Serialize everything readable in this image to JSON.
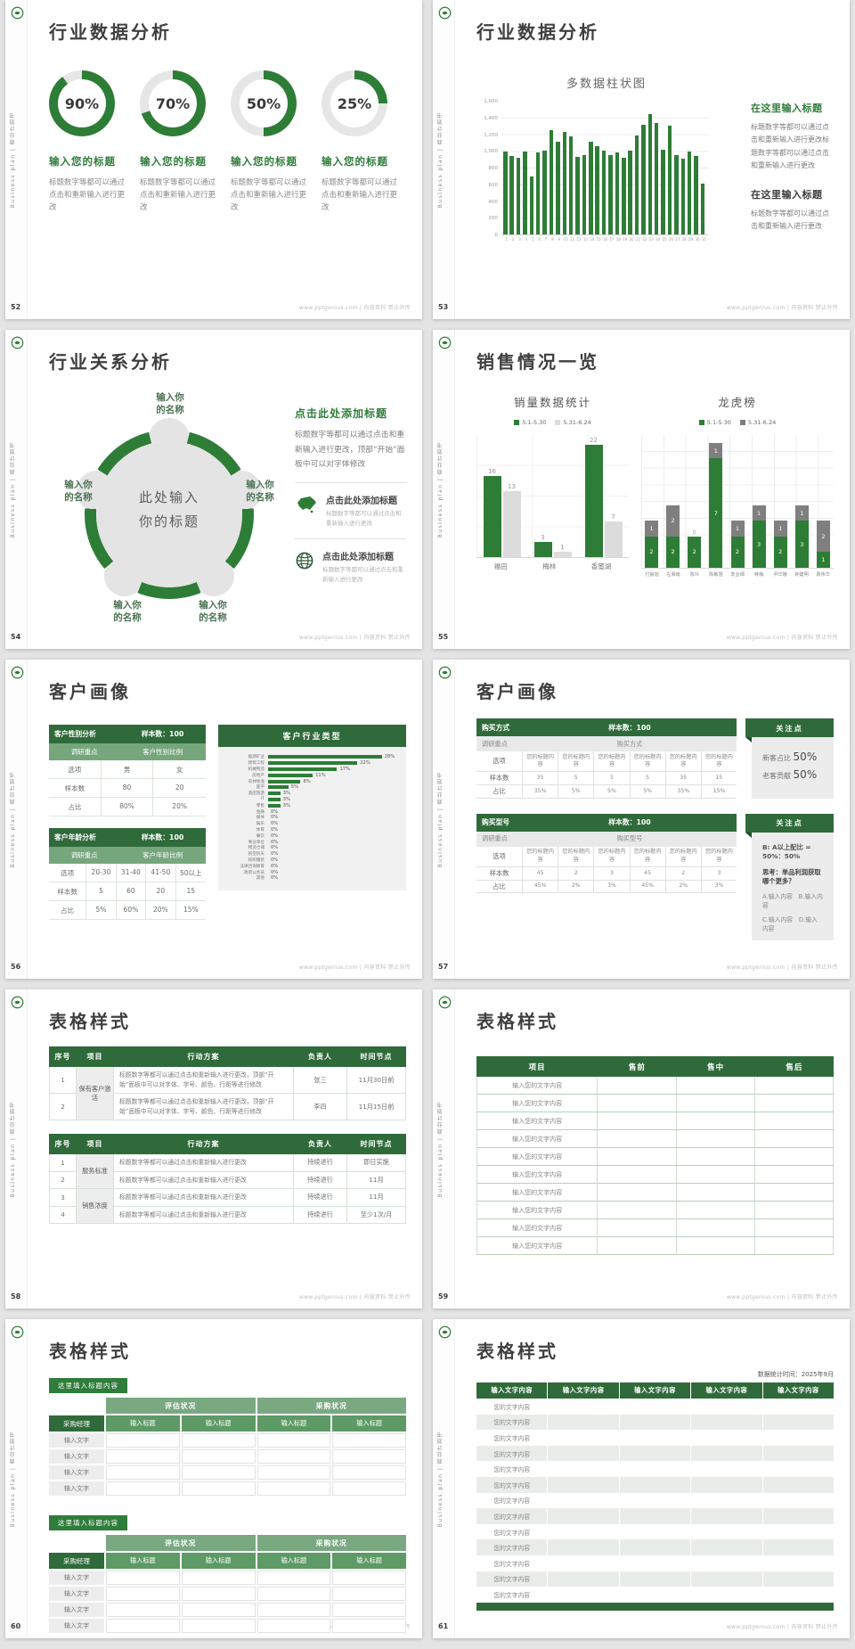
{
  "shared": {
    "sidebar_text": "Business plan | 商业计划书",
    "site_footer": "www.pptgenius.com | 内容资料 禁止外传",
    "accent_green": "#2e7d36",
    "table_header_green": "#2f6b3a"
  },
  "s52": {
    "page_no": "52",
    "title": "行业数据分析",
    "items": [
      {
        "pct": 90,
        "pct_label": "90%",
        "heading": "输入您的标题",
        "body": "标题数字等都可以通过点击和重新输入进行更改"
      },
      {
        "pct": 70,
        "pct_label": "70%",
        "heading": "输入您的标题",
        "body": "标题数字等都可以通过点击和重新输入进行更改"
      },
      {
        "pct": 50,
        "pct_label": "50%",
        "heading": "输入您的标题",
        "body": "标题数字等都可以通过点击和重新输入进行更改"
      },
      {
        "pct": 25,
        "pct_label": "25%",
        "heading": "输入您的标题",
        "body": "标题数字等都可以通过点击和重新输入进行更改"
      }
    ]
  },
  "s53": {
    "page_no": "53",
    "title": "行业数据分析",
    "chart_data": {
      "type": "bar",
      "title": "多数据柱状图",
      "ylim": [
        0,
        1600
      ],
      "yticks": [
        "1,600",
        "1,400",
        "1,200",
        "1,000",
        "800",
        "600",
        "400",
        "200",
        "0"
      ],
      "x": [
        "1",
        "2",
        "3",
        "4",
        "5",
        "6",
        "7",
        "8",
        "9",
        "10",
        "11",
        "12",
        "13",
        "14",
        "15",
        "16",
        "17",
        "18",
        "19",
        "20",
        "21",
        "22",
        "23",
        "24",
        "25",
        "26",
        "27",
        "28",
        "29",
        "30",
        "31"
      ],
      "values": [
        1000,
        950,
        920,
        1000,
        700,
        990,
        1010,
        1260,
        1120,
        1230,
        1180,
        930,
        960,
        1120,
        1060,
        1010,
        960,
        990,
        920,
        1010,
        1190,
        1320,
        1450,
        1340,
        1020,
        1310,
        960,
        910,
        1000,
        940,
        610
      ]
    },
    "panels": [
      {
        "heading": "在这里输入标题",
        "body": "标题数字等都可以通过点击和重新输入进行更改标题数字等都可以通过点击和重新输入进行更改"
      },
      {
        "heading": "在这里输入标题",
        "body": "标题数字等都可以通过点击和重新输入进行更改"
      }
    ]
  },
  "s54": {
    "page_no": "54",
    "title": "行业关系分析",
    "center_line1": "此处输入",
    "center_line2": "你的标题",
    "labels": [
      {
        "l1": "输入你",
        "l2": "的名称"
      },
      {
        "l1": "输入你",
        "l2": "的名称"
      },
      {
        "l1": "输入你",
        "l2": "的名称"
      },
      {
        "l1": "输入你",
        "l2": "的名称"
      },
      {
        "l1": "输入你",
        "l2": "的名称"
      }
    ],
    "panel": {
      "heading": "点击此处添加标题",
      "body": "标题数字等都可以通过点击和重新输入进行更改，顶部“开始”面板中可以对字体修改",
      "items": [
        {
          "icon": "china-map",
          "heading": "点击此处添加标题",
          "body": "标题数字等都可以通过点击和重新输入进行更改"
        },
        {
          "icon": "globe",
          "heading": "点击此处添加标题",
          "body": "标题数字等都可以通过点击和重新输入进行更改"
        }
      ]
    }
  },
  "s55": {
    "page_no": "55",
    "title": "销售情况一览",
    "chart_data": [
      {
        "type": "bar",
        "title": "销量数据统计",
        "legend": [
          "5.1-5.30",
          "5.31-6.24"
        ],
        "categories": [
          "福田",
          "梅林",
          "香蜜湖"
        ],
        "groups": [
          {
            "a": 16,
            "b": 13
          },
          {
            "a": 3,
            "b": 1
          },
          {
            "a": 22,
            "b": 7
          }
        ],
        "max": 24
      },
      {
        "type": "stacked-bar",
        "title": "龙虎榜",
        "legend": [
          "5.1-5.30",
          "5.31-6.24"
        ],
        "categories": [
          "付晨旭",
          "左湘南",
          "陈玲",
          "陈敏慧",
          "李业细",
          "蒋梅",
          "尹华娥",
          "钟建明",
          "周伟华"
        ],
        "bars": [
          {
            "g": 2,
            "y": 1
          },
          {
            "g": 2,
            "y": 2
          },
          {
            "g": 2,
            "y": 0
          },
          {
            "g": 7,
            "y": 1
          },
          {
            "g": 2,
            "y": 1
          },
          {
            "g": 3,
            "y": 1
          },
          {
            "g": 2,
            "y": 1
          },
          {
            "g": 3,
            "y": 1
          },
          {
            "g": 1,
            "y": 2
          }
        ],
        "max": 8.5
      }
    ]
  },
  "s56": {
    "page_no": "56",
    "title": "客户画像",
    "t1": {
      "h1": "客户性别分析",
      "h2": "样本数：100",
      "sub1": "调研重点",
      "sub2": "客户性别比例",
      "r1": [
        "选项",
        "男",
        "女"
      ],
      "r2": [
        "样本数",
        "80",
        "20"
      ],
      "r3": [
        "占比",
        "80%",
        "20%"
      ]
    },
    "t2": {
      "h1": "客户年龄分析",
      "h2": "样本数：100",
      "sub1": "调研重点",
      "sub2": "客户年龄比例",
      "r1": [
        "选项",
        "20-30",
        "31-40",
        "41-50",
        "50以上"
      ],
      "r2": [
        "样本数",
        "5",
        "60",
        "20",
        "15"
      ],
      "r3": [
        "占比",
        "5%",
        "60%",
        "20%",
        "15%"
      ]
    },
    "industry": {
      "header": "客户行业类型",
      "type": "hbar",
      "rows": [
        {
          "label": "能源矿业",
          "pct": 28
        },
        {
          "label": "建筑工程",
          "pct": 22
        },
        {
          "label": "机械制造",
          "pct": 17
        },
        {
          "label": "房地产",
          "pct": 11
        },
        {
          "label": "农林牧渔",
          "pct": 8
        },
        {
          "label": "医学",
          "pct": 5
        },
        {
          "label": "酒店旅游",
          "pct": 3
        },
        {
          "label": "IT",
          "pct": 3
        },
        {
          "label": "零售",
          "pct": 3
        },
        {
          "label": "金融",
          "pct": 0
        },
        {
          "label": "媒体",
          "pct": 0
        },
        {
          "label": "娱乐",
          "pct": 0
        },
        {
          "label": "体育",
          "pct": 0
        },
        {
          "label": "餐饮",
          "pct": 0
        },
        {
          "label": "事业单位",
          "pct": 0
        },
        {
          "label": "物流仓储",
          "pct": 0
        },
        {
          "label": "航空航天",
          "pct": 0
        },
        {
          "label": "纺织服装",
          "pct": 0
        },
        {
          "label": "法律咨询教育",
          "pct": 0
        },
        {
          "label": "政府公务员",
          "pct": 0
        },
        {
          "label": "其他",
          "pct": 0
        }
      ]
    }
  },
  "s57": {
    "page_no": "57",
    "title": "客户画像",
    "g1": {
      "h1": "购买方式",
      "h2": "样本数：100",
      "sub1": "调研重点",
      "sub2": "购买方式",
      "r1_label": "选项",
      "option_cells": [
        "您的标题内容",
        "您的标题内容",
        "您的标题内容",
        "您的标题内容",
        "您的标题内容",
        "您的标题内容"
      ],
      "r2_label": "样本数",
      "r2": [
        "35",
        "5",
        "5",
        "5",
        "35",
        "15"
      ],
      "r3_label": "占比",
      "r3": [
        "35%",
        "5%",
        "5%",
        "5%",
        "35%",
        "15%"
      ],
      "panel_h": "关注点",
      "panel_lines": [
        {
          "t": "新客占比 ",
          "v": "50%"
        },
        {
          "t": "老客贡献 ",
          "v": "50%"
        }
      ]
    },
    "g2": {
      "h1": "购买型号",
      "h2": "样本数：100",
      "sub1": "调研重点",
      "sub2": "购买型号",
      "r1_label": "选项",
      "option_cells": [
        "您的标题内容",
        "您的标题内容",
        "您的标题内容",
        "您的标题内容",
        "您的标题内容",
        "您的标题内容"
      ],
      "r2_label": "样本数",
      "r2": [
        "45",
        "2",
        "3",
        "45",
        "2",
        "3"
      ],
      "r3_label": "占比",
      "r3": [
        "45%",
        "2%",
        "3%",
        "45%",
        "2%",
        "3%"
      ],
      "panel_h": "关注点",
      "line1": "B: A以上配比 = 50%：50%",
      "line2": "思考：单品利润获取哪个更多？",
      "line3": "A.输入内容　B.输入内容",
      "line4": "C.输入内容　D.输入内容"
    }
  },
  "s58": {
    "page_no": "58",
    "title": "表格样式",
    "headers": [
      "序号",
      "项目",
      "行动方案",
      "负责人",
      "时间节点"
    ],
    "t1": {
      "proj": "保有客户激活",
      "rows": [
        {
          "no": "1",
          "action": "标题数字等都可以通过点击和重新输入进行更改，顶部“开始”面板中可以对字体、字号、颜色、行距等进行修改",
          "owner": "张三",
          "time": "11月30日前"
        },
        {
          "no": "2",
          "action": "标题数字等都可以通过点击和重新输入进行更改，顶部“开始”面板中可以对字体、字号、颜色、行距等进行修改",
          "owner": "李四",
          "time": "11月15日前"
        }
      ]
    },
    "t2": {
      "proj1": "服务标准",
      "proj2": "销售浓度",
      "rows": [
        {
          "no": "1",
          "action": "标题数字等都可以通过点击和重新输入进行更改",
          "owner": "持续进行",
          "time": "即日实施"
        },
        {
          "no": "2",
          "action": "标题数字等都可以通过点击和重新输入进行更改",
          "owner": "持续进行",
          "time": "11月"
        },
        {
          "no": "3",
          "action": "标题数字等都可以通过点击和重新输入进行更改",
          "owner": "持续进行",
          "time": "11月"
        },
        {
          "no": "4",
          "action": "标题数字等都可以通过点击和重新输入进行更改",
          "owner": "持续进行",
          "time": "至少1次/月"
        }
      ]
    }
  },
  "s59": {
    "page_no": "59",
    "title": "表格样式",
    "headers": [
      "项目",
      "售前",
      "售中",
      "售后"
    ],
    "rows": [
      "输入您的文字内容",
      "输入您的文字内容",
      "输入您的文字内容",
      "输入您的文字内容",
      "输入您的文字内容",
      "输入您的文字内容",
      "输入您的文字内容",
      "输入您的文字内容",
      "输入您的文字内容",
      "输入您的文字内容"
    ]
  },
  "s60": {
    "page_no": "60",
    "title": "表格样式",
    "sections": [
      {
        "chip": "这里填入标题内容",
        "span1": "评估状况",
        "span2": "采购状况",
        "col1": "采购经理",
        "cols": [
          "输入标题",
          "输入标题",
          "输入标题",
          "输入标题"
        ],
        "rows": [
          "输入文字",
          "输入文字",
          "输入文字",
          "输入文字"
        ]
      },
      {
        "chip": "这里填入标题内容",
        "span1": "评估状况",
        "span2": "采购状况",
        "col1": "采购经理",
        "cols": [
          "输入标题",
          "输入标题",
          "输入标题",
          "输入标题"
        ],
        "rows": [
          "输入文字",
          "输入文字",
          "输入文字",
          "输入文字"
        ]
      }
    ]
  },
  "s61": {
    "page_no": "61",
    "title": "表格样式",
    "stat_time": "数据统计时间：2025年9月",
    "headers": [
      "输入文字内容",
      "输入文字内容",
      "输入文字内容",
      "输入文字内容",
      "输入文字内容"
    ],
    "rows": [
      "您的文字内容",
      "您的文字内容",
      "您的文字内容",
      "您的文字内容",
      "您的文字内容",
      "您的文字内容",
      "您的文字内容",
      "您的文字内容",
      "您的文字内容",
      "您的文字内容",
      "您的文字内容",
      "您的文字内容",
      "您的文字内容"
    ]
  }
}
